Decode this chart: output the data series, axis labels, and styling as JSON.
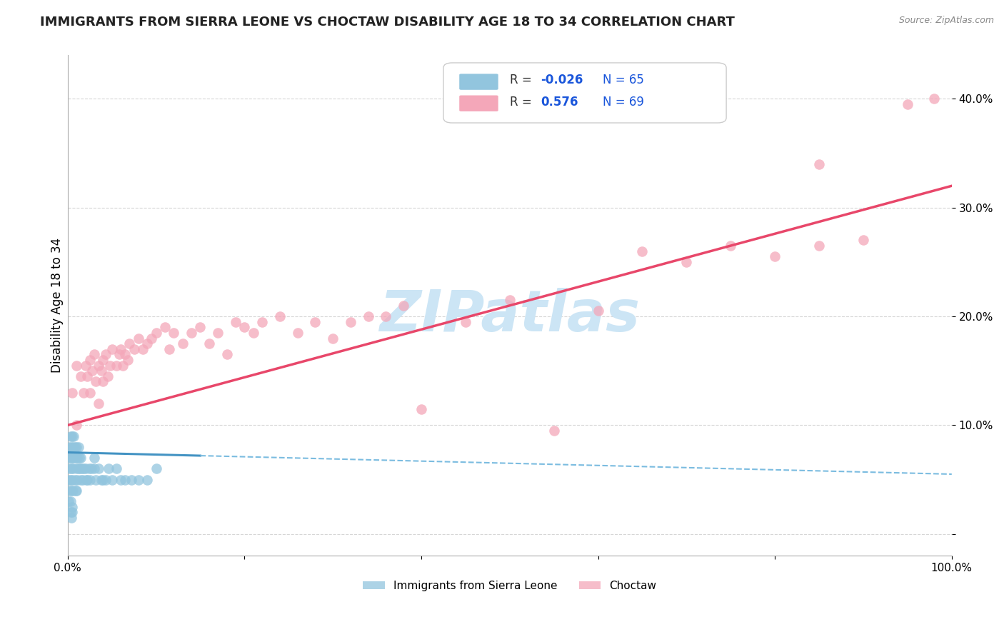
{
  "title": "IMMIGRANTS FROM SIERRA LEONE VS CHOCTAW DISABILITY AGE 18 TO 34 CORRELATION CHART",
  "source": "Source: ZipAtlas.com",
  "ylabel": "Disability Age 18 to 34",
  "xlim": [
    0.0,
    1.0
  ],
  "ylim": [
    -0.02,
    0.44
  ],
  "xticks": [
    0.0,
    0.2,
    0.4,
    0.6,
    0.8,
    1.0
  ],
  "xtick_labels": [
    "0.0%",
    "",
    "",
    "",
    "",
    "100.0%"
  ],
  "yticks": [
    0.0,
    0.1,
    0.2,
    0.3,
    0.4
  ],
  "ytick_labels_right": [
    "",
    "10.0%",
    "20.0%",
    "30.0%",
    "40.0%"
  ],
  "sierra_leone_color": "#92c5de",
  "choctaw_color": "#f4a7b9",
  "sierra_leone_line_color": "#4393c3",
  "choctaw_line_color": "#e8476a",
  "sierra_leone_line_solid_color": "#4393c3",
  "sierra_leone_line_dash_color": "#7bbce0",
  "watermark_text": "ZIPatlas",
  "watermark_color": "#cce5f5",
  "background_color": "#ffffff",
  "grid_color": "#cccccc",
  "title_fontsize": 13,
  "axis_label_fontsize": 12,
  "tick_fontsize": 11,
  "legend_r1": "R = -0.026",
  "legend_n1": "N = 65",
  "legend_r2": "R =  0.576",
  "legend_n2": "N = 69",
  "sierra_leone_x": [
    0.001,
    0.001,
    0.001,
    0.002,
    0.002,
    0.002,
    0.003,
    0.003,
    0.003,
    0.003,
    0.004,
    0.004,
    0.004,
    0.005,
    0.005,
    0.005,
    0.005,
    0.006,
    0.006,
    0.006,
    0.007,
    0.007,
    0.008,
    0.008,
    0.009,
    0.009,
    0.01,
    0.01,
    0.01,
    0.011,
    0.011,
    0.012,
    0.012,
    0.013,
    0.014,
    0.015,
    0.015,
    0.016,
    0.017,
    0.018,
    0.02,
    0.021,
    0.022,
    0.024,
    0.025,
    0.027,
    0.03,
    0.032,
    0.035,
    0.038,
    0.04,
    0.043,
    0.046,
    0.05,
    0.055,
    0.06,
    0.065,
    0.072,
    0.08,
    0.09,
    0.1,
    0.003,
    0.004,
    0.005,
    0.03
  ],
  "sierra_leone_y": [
    0.07,
    0.05,
    0.03,
    0.08,
    0.06,
    0.04,
    0.09,
    0.07,
    0.05,
    0.03,
    0.08,
    0.06,
    0.04,
    0.09,
    0.07,
    0.05,
    0.02,
    0.08,
    0.06,
    0.04,
    0.09,
    0.07,
    0.08,
    0.05,
    0.07,
    0.04,
    0.08,
    0.06,
    0.04,
    0.07,
    0.05,
    0.08,
    0.06,
    0.07,
    0.06,
    0.07,
    0.05,
    0.06,
    0.05,
    0.06,
    0.06,
    0.05,
    0.05,
    0.06,
    0.05,
    0.06,
    0.06,
    0.05,
    0.06,
    0.05,
    0.05,
    0.05,
    0.06,
    0.05,
    0.06,
    0.05,
    0.05,
    0.05,
    0.05,
    0.05,
    0.06,
    0.02,
    0.015,
    0.025,
    0.07
  ],
  "choctaw_x": [
    0.005,
    0.01,
    0.01,
    0.015,
    0.018,
    0.02,
    0.022,
    0.025,
    0.025,
    0.028,
    0.03,
    0.032,
    0.035,
    0.035,
    0.038,
    0.04,
    0.04,
    0.043,
    0.045,
    0.048,
    0.05,
    0.055,
    0.058,
    0.06,
    0.062,
    0.065,
    0.068,
    0.07,
    0.075,
    0.08,
    0.085,
    0.09,
    0.095,
    0.1,
    0.11,
    0.115,
    0.12,
    0.13,
    0.14,
    0.15,
    0.16,
    0.17,
    0.18,
    0.19,
    0.2,
    0.21,
    0.22,
    0.24,
    0.26,
    0.28,
    0.3,
    0.32,
    0.34,
    0.36,
    0.38,
    0.4,
    0.45,
    0.5,
    0.55,
    0.6,
    0.65,
    0.7,
    0.75,
    0.8,
    0.85,
    0.85,
    0.9,
    0.95,
    0.98
  ],
  "choctaw_y": [
    0.13,
    0.1,
    0.155,
    0.145,
    0.13,
    0.155,
    0.145,
    0.16,
    0.13,
    0.15,
    0.165,
    0.14,
    0.155,
    0.12,
    0.15,
    0.16,
    0.14,
    0.165,
    0.145,
    0.155,
    0.17,
    0.155,
    0.165,
    0.17,
    0.155,
    0.165,
    0.16,
    0.175,
    0.17,
    0.18,
    0.17,
    0.175,
    0.18,
    0.185,
    0.19,
    0.17,
    0.185,
    0.175,
    0.185,
    0.19,
    0.175,
    0.185,
    0.165,
    0.195,
    0.19,
    0.185,
    0.195,
    0.2,
    0.185,
    0.195,
    0.18,
    0.195,
    0.2,
    0.2,
    0.21,
    0.115,
    0.195,
    0.215,
    0.095,
    0.205,
    0.26,
    0.25,
    0.265,
    0.255,
    0.34,
    0.265,
    0.27,
    0.395,
    0.4
  ]
}
